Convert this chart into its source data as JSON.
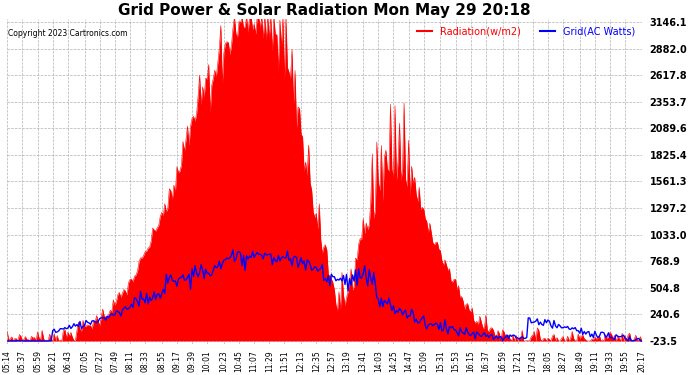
{
  "title": "Grid Power & Solar Radiation Mon May 29 20:18",
  "copyright": "Copyright 2023 Cartronics.com",
  "legend_radiation": "Radiation(w/m2)",
  "legend_grid": "Grid(AC Watts)",
  "background_color": "#ffffff",
  "plot_bg_color": "#ffffff",
  "grid_color": "#aaaaaa",
  "radiation_color": "#ff0000",
  "grid_line_color": "#0000ff",
  "radiation_fill_color": "#ff0000",
  "ylim_min": -23.5,
  "ylim_max": 3146.1,
  "yticks": [
    3146.1,
    2882.0,
    2617.8,
    2353.7,
    2089.6,
    1825.4,
    1561.3,
    1297.2,
    1033.0,
    768.9,
    504.8,
    240.6,
    -23.5
  ],
  "x_labels": [
    "05:14",
    "05:37",
    "05:59",
    "06:21",
    "06:43",
    "07:05",
    "07:27",
    "07:49",
    "08:11",
    "08:33",
    "08:55",
    "09:17",
    "09:39",
    "10:01",
    "10:23",
    "10:45",
    "11:07",
    "11:29",
    "11:51",
    "12:13",
    "12:35",
    "12:57",
    "13:19",
    "13:41",
    "14:03",
    "14:25",
    "14:47",
    "15:09",
    "15:31",
    "15:53",
    "16:15",
    "16:37",
    "16:59",
    "17:21",
    "17:43",
    "18:05",
    "18:27",
    "18:49",
    "19:11",
    "19:33",
    "19:55",
    "20:17"
  ],
  "num_points": 420,
  "peak_value": 3146.1,
  "grid_peak": 820.0
}
